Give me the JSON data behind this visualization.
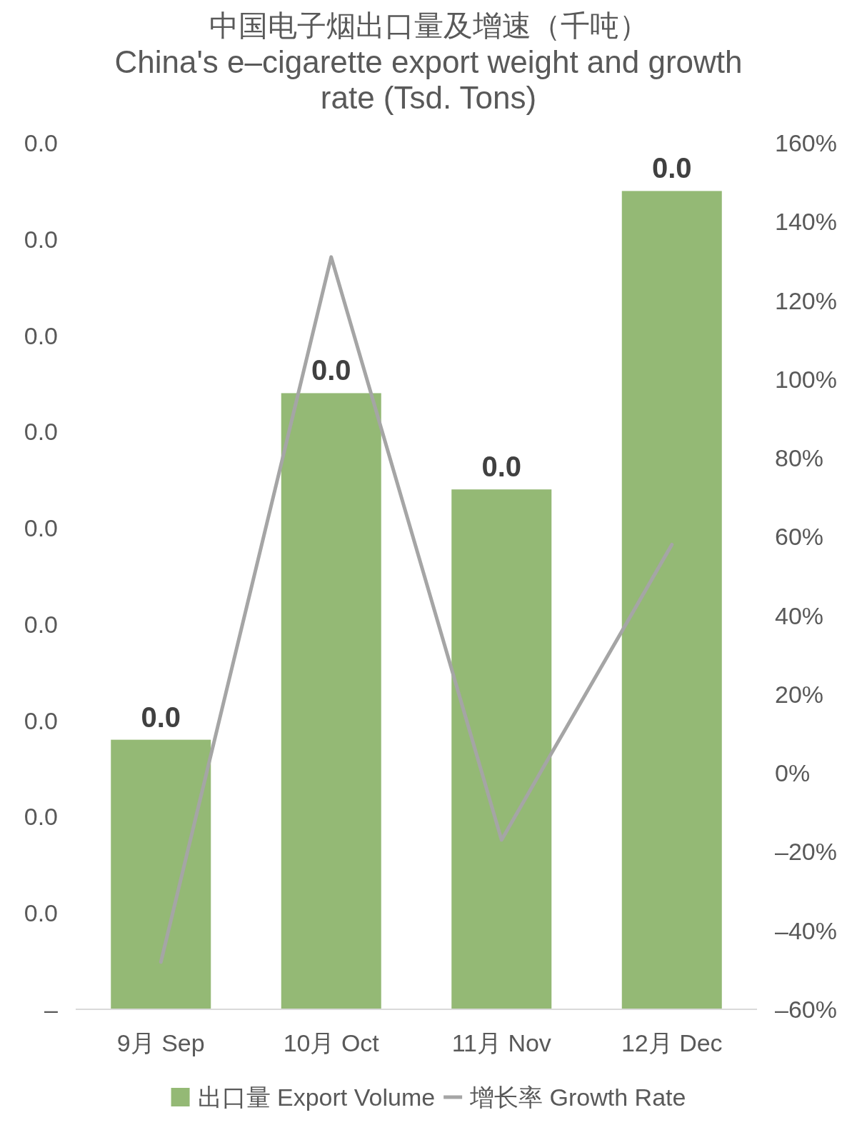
{
  "chart_data": {
    "type": "bar",
    "title": "中国电子烟出口量及增速（千吨）",
    "subtitle": "China's e–cigarette export weight and growth rate (Tsd. Tons)",
    "categories": [
      "9月 Sep",
      "10月 Oct",
      "11月 Nov",
      "12月 Dec"
    ],
    "series": [
      {
        "name": "出口量 Export Volume",
        "color": "#94b975",
        "values": [
          0.0028,
          0.0064,
          0.0054,
          0.0085
        ],
        "value_labels": [
          "0.0",
          "0.0",
          "0.0",
          "0.0"
        ]
      },
      {
        "name": "增长率 Growth Rate",
        "type": "line",
        "axis": "y2",
        "color": "#a5a5a5",
        "values": [
          -48,
          131,
          -17,
          58
        ]
      }
    ],
    "ylim": [
      0,
      0.009
    ],
    "yticks": [
      {
        "value": 0,
        "label": "–"
      },
      {
        "value": 0.001,
        "label": "0.0"
      },
      {
        "value": 0.002,
        "label": "0.0"
      },
      {
        "value": 0.003,
        "label": "0.0"
      },
      {
        "value": 0.004,
        "label": "0.0"
      },
      {
        "value": 0.005,
        "label": "0.0"
      },
      {
        "value": 0.006,
        "label": "0.0"
      },
      {
        "value": 0.007,
        "label": "0.0"
      },
      {
        "value": 0.008,
        "label": "0.0"
      },
      {
        "value": 0.009,
        "label": "0.0"
      }
    ],
    "y2lim": [
      -60,
      160
    ],
    "y2ticks": [
      {
        "value": -60,
        "label": "–60%"
      },
      {
        "value": -40,
        "label": "–40%"
      },
      {
        "value": -20,
        "label": "–20%"
      },
      {
        "value": 0,
        "label": "0%"
      },
      {
        "value": 20,
        "label": "20%"
      },
      {
        "value": 40,
        "label": "40%"
      },
      {
        "value": 60,
        "label": "60%"
      },
      {
        "value": 80,
        "label": "80%"
      },
      {
        "value": 100,
        "label": "100%"
      },
      {
        "value": 120,
        "label": "120%"
      },
      {
        "value": 140,
        "label": "140%"
      },
      {
        "value": 160,
        "label": "160%"
      }
    ],
    "legend": "bottom"
  }
}
